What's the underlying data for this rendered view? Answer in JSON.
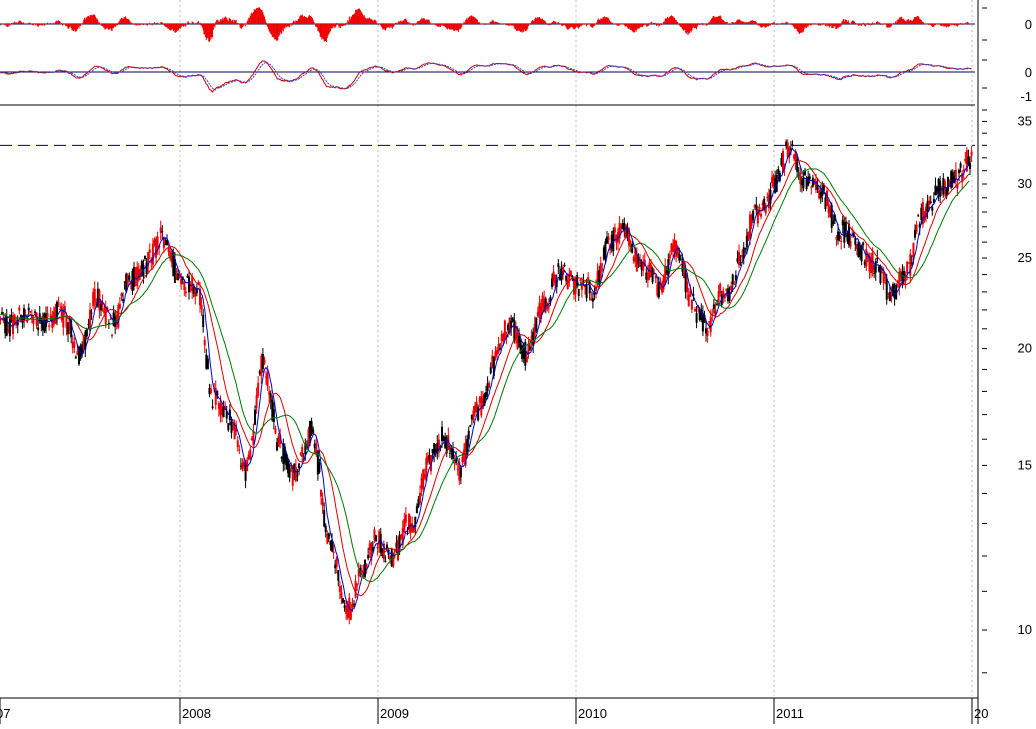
{
  "chart_data": {
    "type": "line",
    "title": "",
    "xlabel": "",
    "ylabel": "",
    "y_scale": "log",
    "ylim": [
      8.5,
      36
    ],
    "grid_x": true,
    "grid_y": false,
    "x_tick_labels": [
      "07",
      "2008",
      "2009",
      "2010",
      "2011",
      "20"
    ],
    "y_tick_labels": [
      "35",
      "30",
      "25",
      "20",
      "15",
      "10"
    ],
    "y_tick_values": [
      35,
      30,
      25,
      20,
      15,
      10
    ],
    "resistance_level": 33,
    "series": [
      {
        "role": "price",
        "values": [
          {
            "x": "2007-06",
            "y": 21.5
          },
          {
            "x": "2007-07",
            "y": 20.0
          },
          {
            "x": "2007-08",
            "y": 22.5
          },
          {
            "x": "2007-09",
            "y": 21.5
          },
          {
            "x": "2007-10",
            "y": 23.5
          },
          {
            "x": "2007-11",
            "y": 25.0
          },
          {
            "x": "2007-12",
            "y": 26.0
          },
          {
            "x": "2008-01",
            "y": 24.0
          },
          {
            "x": "2008-02",
            "y": 23.0
          },
          {
            "x": "2008-03",
            "y": 18.0
          },
          {
            "x": "2008-04",
            "y": 16.5
          },
          {
            "x": "2008-05",
            "y": 15.0
          },
          {
            "x": "2008-06",
            "y": 19.0
          },
          {
            "x": "2008-07",
            "y": 16.0
          },
          {
            "x": "2008-08",
            "y": 14.5
          },
          {
            "x": "2008-09",
            "y": 16.5
          },
          {
            "x": "2008-10",
            "y": 12.5
          },
          {
            "x": "2008-11",
            "y": 10.5
          },
          {
            "x": "2008-12",
            "y": 11.5
          },
          {
            "x": "2009-01",
            "y": 12.5
          },
          {
            "x": "2009-02",
            "y": 12.0
          },
          {
            "x": "2009-03",
            "y": 13.0
          },
          {
            "x": "2009-04",
            "y": 15.0
          },
          {
            "x": "2009-05",
            "y": 16.0
          },
          {
            "x": "2009-06",
            "y": 15.0
          },
          {
            "x": "2009-07",
            "y": 17.0
          },
          {
            "x": "2009-08",
            "y": 19.5
          },
          {
            "x": "2009-09",
            "y": 21.0
          },
          {
            "x": "2009-10",
            "y": 20.0
          },
          {
            "x": "2009-11",
            "y": 22.0
          },
          {
            "x": "2009-12",
            "y": 24.5
          },
          {
            "x": "2010-01",
            "y": 23.0
          },
          {
            "x": "2010-02",
            "y": 23.5
          },
          {
            "x": "2010-03",
            "y": 25.5
          },
          {
            "x": "2010-04",
            "y": 27.0
          },
          {
            "x": "2010-05",
            "y": 24.0
          },
          {
            "x": "2010-06",
            "y": 23.5
          },
          {
            "x": "2010-07",
            "y": 25.5
          },
          {
            "x": "2010-08",
            "y": 22.5
          },
          {
            "x": "2010-09",
            "y": 21.0
          },
          {
            "x": "2010-10",
            "y": 23.0
          },
          {
            "x": "2010-11",
            "y": 25.0
          },
          {
            "x": "2010-12",
            "y": 28.0
          },
          {
            "x": "2011-01",
            "y": 30.0
          },
          {
            "x": "2011-02",
            "y": 32.5
          },
          {
            "x": "2011-03",
            "y": 30.5
          },
          {
            "x": "2011-04",
            "y": 29.0
          },
          {
            "x": "2011-05",
            "y": 27.0
          },
          {
            "x": "2011-06",
            "y": 25.5
          },
          {
            "x": "2011-07",
            "y": 25.0
          },
          {
            "x": "2011-08",
            "y": 22.5
          },
          {
            "x": "2011-09",
            "y": 24.5
          },
          {
            "x": "2011-10",
            "y": 27.5
          },
          {
            "x": "2011-11",
            "y": 30.0
          },
          {
            "x": "2011-12",
            "y": 30.0
          },
          {
            "x": "2012-01",
            "y": 32.5
          }
        ]
      }
    ],
    "moving_average_colors": [
      "#0000cc",
      "#dd0000",
      "#007700"
    ]
  },
  "indicators": {
    "histogram": {
      "tick_label": "0",
      "color": "#ee0000"
    },
    "oscillator": {
      "tick_labels": [
        "0",
        "-1"
      ],
      "line_color": "#cc0000",
      "signal_color": "#3344cc"
    }
  },
  "colors": {
    "candle_down": "#000000",
    "candle_up": "#ee0000",
    "grid": "#bbbbbb",
    "resistance": "#000066"
  }
}
